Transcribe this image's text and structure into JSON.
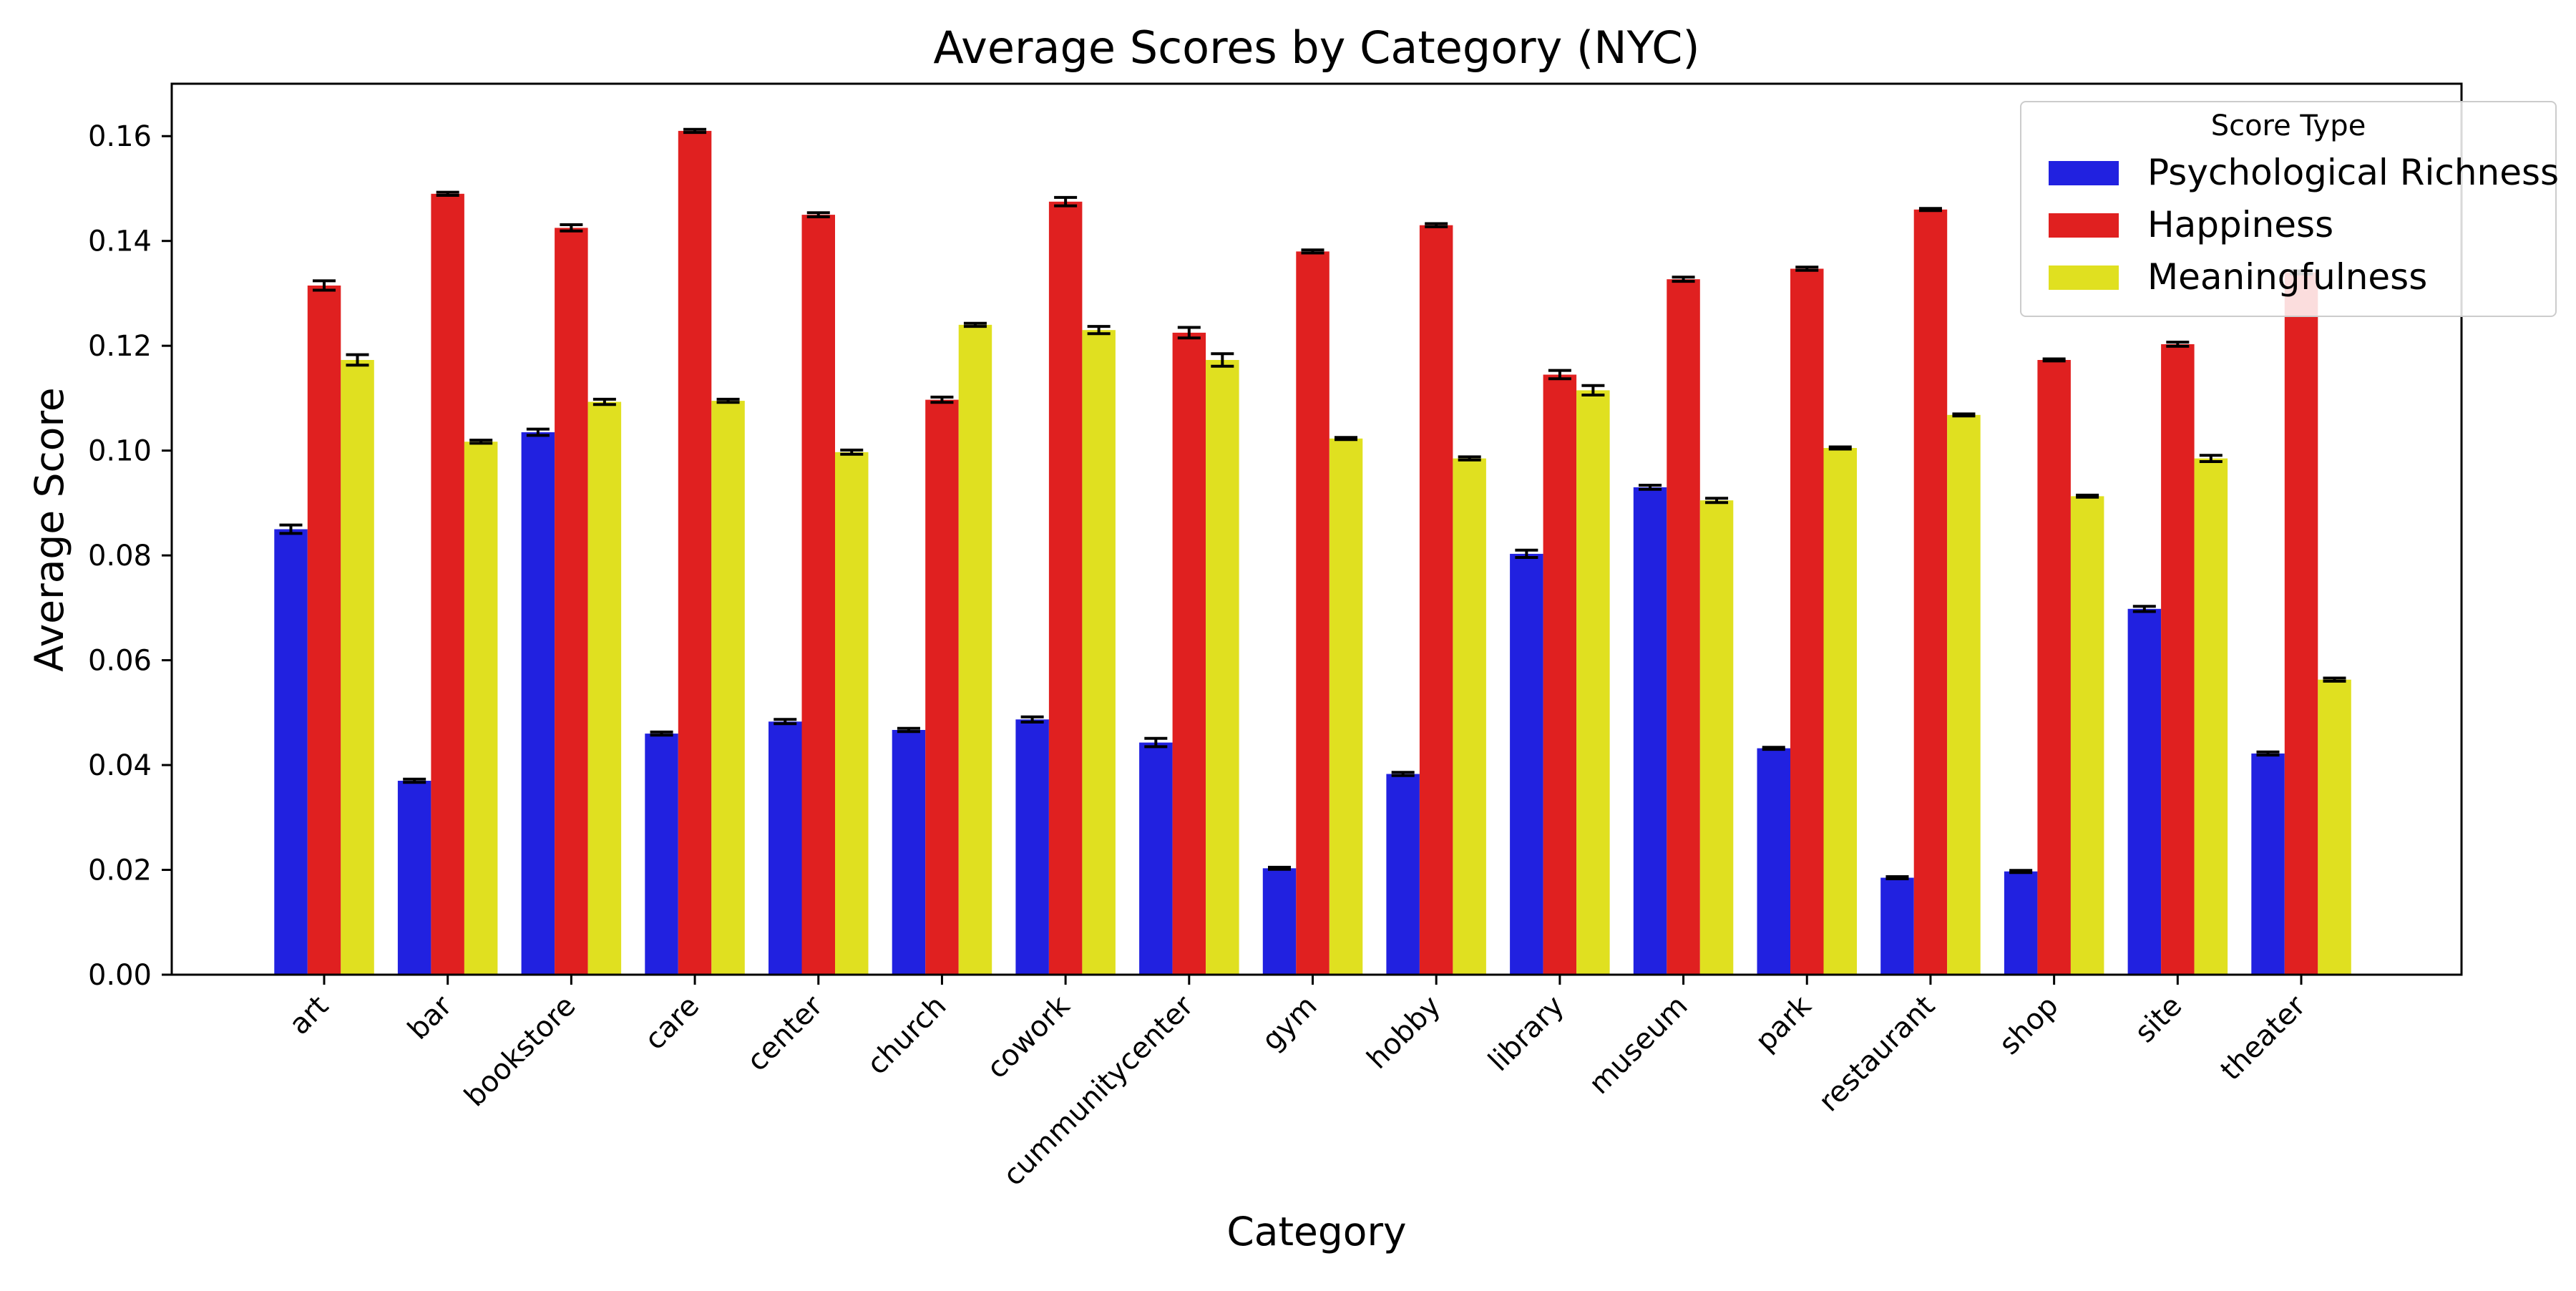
{
  "chart_data": {
    "type": "bar",
    "title": "Average Scores by Category (NYC)",
    "xlabel": "Category",
    "ylabel": "Average Score",
    "ylim": [
      0,
      0.17
    ],
    "yticks": [
      "0.00",
      "0.02",
      "0.04",
      "0.06",
      "0.08",
      "0.10",
      "0.12",
      "0.14",
      "0.16"
    ],
    "grid": false,
    "legend": {
      "title": "Score Type",
      "placement": "top-right"
    },
    "categories": [
      "art",
      "bar",
      "bookstore",
      "care",
      "center",
      "church",
      "cowork",
      "cummunitycenter",
      "gym",
      "hobby",
      "library",
      "museum",
      "park",
      "restaurant",
      "shop",
      "site",
      "theater"
    ],
    "series": [
      {
        "name": "Psychological Richness",
        "color": "#2121e0",
        "values": [
          0.085,
          0.037,
          0.1035,
          0.046,
          0.0483,
          0.0467,
          0.0487,
          0.0443,
          0.0203,
          0.0383,
          0.0803,
          0.093,
          0.0432,
          0.0185,
          0.0197,
          0.0698,
          0.0422
        ],
        "errors": [
          0.0008,
          0.0003,
          0.0006,
          0.0003,
          0.0004,
          0.0003,
          0.0005,
          0.0008,
          0.0002,
          0.0003,
          0.0007,
          0.0004,
          0.0002,
          0.0002,
          0.0002,
          0.0005,
          0.0003
        ]
      },
      {
        "name": "Happiness",
        "color": "#e02020",
        "values": [
          0.1315,
          0.149,
          0.1425,
          0.161,
          0.145,
          0.1097,
          0.1475,
          0.1225,
          0.138,
          0.143,
          0.1145,
          0.1327,
          0.1347,
          0.146,
          0.1173,
          0.1203,
          0.134
        ],
        "errors": [
          0.0009,
          0.0003,
          0.0006,
          0.0003,
          0.0004,
          0.0005,
          0.0008,
          0.001,
          0.0003,
          0.0003,
          0.0008,
          0.0004,
          0.0003,
          0.0002,
          0.0002,
          0.0004,
          0.0003
        ]
      },
      {
        "name": "Meaningfulness",
        "color": "#e0e020",
        "values": [
          0.1173,
          0.1017,
          0.1093,
          0.1095,
          0.0997,
          0.124,
          0.123,
          0.1173,
          0.1023,
          0.0985,
          0.1115,
          0.0905,
          0.1005,
          0.1068,
          0.0913,
          0.0985,
          0.0563
        ],
        "errors": [
          0.001,
          0.0003,
          0.0005,
          0.0003,
          0.0004,
          0.0003,
          0.0007,
          0.0012,
          0.0002,
          0.0003,
          0.0009,
          0.0004,
          0.0002,
          0.0002,
          0.0002,
          0.0006,
          0.0003
        ]
      }
    ]
  }
}
